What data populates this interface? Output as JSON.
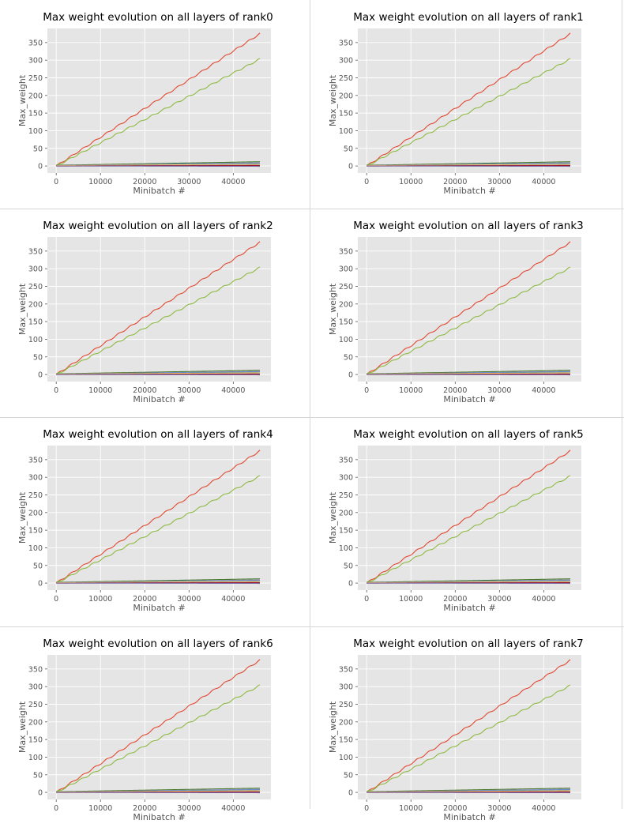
{
  "chart_data": [
    {
      "type": "line",
      "title": "Max weight evolution on all layers of rank0",
      "xlabel": "Minibatch #",
      "ylabel": "Max_weight",
      "xlim": [
        -2000,
        48500
      ],
      "ylim": [
        -20,
        390
      ],
      "xticks": [
        0,
        10000,
        20000,
        30000,
        40000
      ],
      "yticks": [
        0,
        50,
        100,
        150,
        200,
        250,
        300,
        350
      ],
      "grid": true,
      "background": "#e5e5e5",
      "gridcolor": "#ffffff",
      "series": [
        {
          "color": "#e24a33",
          "x": [
            0,
            46000
          ],
          "y": [
            0,
            375
          ]
        },
        {
          "color": "#8eba42",
          "x": [
            0,
            46000
          ],
          "y": [
            0,
            303
          ]
        },
        {
          "color": "#467821",
          "x": [
            0,
            46000
          ],
          "y": [
            2,
            12
          ]
        },
        {
          "color": "#988ed5",
          "x": [
            0,
            46000
          ],
          "y": [
            1,
            9
          ]
        },
        {
          "color": "#348abd",
          "x": [
            0,
            46000
          ],
          "y": [
            1,
            7
          ]
        },
        {
          "color": "#fbc15e",
          "x": [
            0,
            46000
          ],
          "y": [
            1,
            5
          ]
        },
        {
          "color": "#777777",
          "x": [
            0,
            46000
          ],
          "y": [
            0,
            2
          ]
        },
        {
          "color": "#a60628",
          "x": [
            0,
            46000
          ],
          "y": [
            0,
            1
          ]
        },
        {
          "color": "#7a68a6",
          "x": [
            0,
            46000
          ],
          "y": [
            0,
            -1
          ]
        }
      ]
    },
    {
      "type": "line",
      "title": "Max weight evolution on all layers of rank1",
      "xlabel": "Minibatch #",
      "ylabel": "Max_weight",
      "xlim": [
        -2000,
        48500
      ],
      "ylim": [
        -20,
        390
      ],
      "xticks": [
        0,
        10000,
        20000,
        30000,
        40000
      ],
      "yticks": [
        0,
        50,
        100,
        150,
        200,
        250,
        300,
        350
      ],
      "grid": true,
      "background": "#e5e5e5",
      "gridcolor": "#ffffff",
      "series": [
        {
          "color": "#e24a33",
          "x": [
            0,
            46000
          ],
          "y": [
            0,
            375
          ]
        },
        {
          "color": "#8eba42",
          "x": [
            0,
            46000
          ],
          "y": [
            0,
            303
          ]
        },
        {
          "color": "#467821",
          "x": [
            0,
            46000
          ],
          "y": [
            2,
            12
          ]
        },
        {
          "color": "#988ed5",
          "x": [
            0,
            46000
          ],
          "y": [
            1,
            9
          ]
        },
        {
          "color": "#348abd",
          "x": [
            0,
            46000
          ],
          "y": [
            1,
            7
          ]
        },
        {
          "color": "#fbc15e",
          "x": [
            0,
            46000
          ],
          "y": [
            1,
            5
          ]
        },
        {
          "color": "#777777",
          "x": [
            0,
            46000
          ],
          "y": [
            0,
            2
          ]
        },
        {
          "color": "#a60628",
          "x": [
            0,
            46000
          ],
          "y": [
            0,
            1
          ]
        },
        {
          "color": "#7a68a6",
          "x": [
            0,
            46000
          ],
          "y": [
            0,
            -1
          ]
        }
      ]
    },
    {
      "type": "line",
      "title": "Max weight evolution on all layers of rank2",
      "xlabel": "Minibatch #",
      "ylabel": "Max_weight",
      "xlim": [
        -2000,
        48500
      ],
      "ylim": [
        -20,
        390
      ],
      "xticks": [
        0,
        10000,
        20000,
        30000,
        40000
      ],
      "yticks": [
        0,
        50,
        100,
        150,
        200,
        250,
        300,
        350
      ],
      "grid": true,
      "background": "#e5e5e5",
      "gridcolor": "#ffffff",
      "series": [
        {
          "color": "#e24a33",
          "x": [
            0,
            46000
          ],
          "y": [
            0,
            375
          ]
        },
        {
          "color": "#8eba42",
          "x": [
            0,
            46000
          ],
          "y": [
            0,
            303
          ]
        },
        {
          "color": "#467821",
          "x": [
            0,
            46000
          ],
          "y": [
            2,
            12
          ]
        },
        {
          "color": "#988ed5",
          "x": [
            0,
            46000
          ],
          "y": [
            1,
            9
          ]
        },
        {
          "color": "#348abd",
          "x": [
            0,
            46000
          ],
          "y": [
            1,
            7
          ]
        },
        {
          "color": "#fbc15e",
          "x": [
            0,
            46000
          ],
          "y": [
            1,
            5
          ]
        },
        {
          "color": "#777777",
          "x": [
            0,
            46000
          ],
          "y": [
            0,
            2
          ]
        },
        {
          "color": "#a60628",
          "x": [
            0,
            46000
          ],
          "y": [
            0,
            1
          ]
        },
        {
          "color": "#7a68a6",
          "x": [
            0,
            46000
          ],
          "y": [
            0,
            -1
          ]
        }
      ]
    },
    {
      "type": "line",
      "title": "Max weight evolution on all layers of rank3",
      "xlabel": "Minibatch #",
      "ylabel": "Max_weight",
      "xlim": [
        -2000,
        48500
      ],
      "ylim": [
        -20,
        390
      ],
      "xticks": [
        0,
        10000,
        20000,
        30000,
        40000
      ],
      "yticks": [
        0,
        50,
        100,
        150,
        200,
        250,
        300,
        350
      ],
      "grid": true,
      "background": "#e5e5e5",
      "gridcolor": "#ffffff",
      "series": [
        {
          "color": "#e24a33",
          "x": [
            0,
            46000
          ],
          "y": [
            0,
            375
          ]
        },
        {
          "color": "#8eba42",
          "x": [
            0,
            46000
          ],
          "y": [
            0,
            303
          ]
        },
        {
          "color": "#467821",
          "x": [
            0,
            46000
          ],
          "y": [
            2,
            12
          ]
        },
        {
          "color": "#988ed5",
          "x": [
            0,
            46000
          ],
          "y": [
            1,
            9
          ]
        },
        {
          "color": "#348abd",
          "x": [
            0,
            46000
          ],
          "y": [
            1,
            7
          ]
        },
        {
          "color": "#fbc15e",
          "x": [
            0,
            46000
          ],
          "y": [
            1,
            5
          ]
        },
        {
          "color": "#777777",
          "x": [
            0,
            46000
          ],
          "y": [
            0,
            2
          ]
        },
        {
          "color": "#a60628",
          "x": [
            0,
            46000
          ],
          "y": [
            0,
            1
          ]
        },
        {
          "color": "#7a68a6",
          "x": [
            0,
            46000
          ],
          "y": [
            0,
            -1
          ]
        }
      ]
    },
    {
      "type": "line",
      "title": "Max weight evolution on all layers of rank4",
      "xlabel": "Minibatch #",
      "ylabel": "Max_weight",
      "xlim": [
        -2000,
        48500
      ],
      "ylim": [
        -20,
        390
      ],
      "xticks": [
        0,
        10000,
        20000,
        30000,
        40000
      ],
      "yticks": [
        0,
        50,
        100,
        150,
        200,
        250,
        300,
        350
      ],
      "grid": true,
      "background": "#e5e5e5",
      "gridcolor": "#ffffff",
      "series": [
        {
          "color": "#e24a33",
          "x": [
            0,
            46000
          ],
          "y": [
            0,
            375
          ]
        },
        {
          "color": "#8eba42",
          "x": [
            0,
            46000
          ],
          "y": [
            0,
            303
          ]
        },
        {
          "color": "#467821",
          "x": [
            0,
            46000
          ],
          "y": [
            2,
            12
          ]
        },
        {
          "color": "#988ed5",
          "x": [
            0,
            46000
          ],
          "y": [
            1,
            9
          ]
        },
        {
          "color": "#348abd",
          "x": [
            0,
            46000
          ],
          "y": [
            1,
            7
          ]
        },
        {
          "color": "#fbc15e",
          "x": [
            0,
            46000
          ],
          "y": [
            1,
            5
          ]
        },
        {
          "color": "#777777",
          "x": [
            0,
            46000
          ],
          "y": [
            0,
            2
          ]
        },
        {
          "color": "#a60628",
          "x": [
            0,
            46000
          ],
          "y": [
            0,
            1
          ]
        },
        {
          "color": "#7a68a6",
          "x": [
            0,
            46000
          ],
          "y": [
            0,
            -1
          ]
        }
      ]
    },
    {
      "type": "line",
      "title": "Max weight evolution on all layers of rank5",
      "xlabel": "Minibatch #",
      "ylabel": "Max_weight",
      "xlim": [
        -2000,
        48500
      ],
      "ylim": [
        -20,
        390
      ],
      "xticks": [
        0,
        10000,
        20000,
        30000,
        40000
      ],
      "yticks": [
        0,
        50,
        100,
        150,
        200,
        250,
        300,
        350
      ],
      "grid": true,
      "background": "#e5e5e5",
      "gridcolor": "#ffffff",
      "series": [
        {
          "color": "#e24a33",
          "x": [
            0,
            46000
          ],
          "y": [
            0,
            375
          ]
        },
        {
          "color": "#8eba42",
          "x": [
            0,
            46000
          ],
          "y": [
            0,
            303
          ]
        },
        {
          "color": "#467821",
          "x": [
            0,
            46000
          ],
          "y": [
            2,
            12
          ]
        },
        {
          "color": "#988ed5",
          "x": [
            0,
            46000
          ],
          "y": [
            1,
            9
          ]
        },
        {
          "color": "#348abd",
          "x": [
            0,
            46000
          ],
          "y": [
            1,
            7
          ]
        },
        {
          "color": "#fbc15e",
          "x": [
            0,
            46000
          ],
          "y": [
            1,
            5
          ]
        },
        {
          "color": "#777777",
          "x": [
            0,
            46000
          ],
          "y": [
            0,
            2
          ]
        },
        {
          "color": "#a60628",
          "x": [
            0,
            46000
          ],
          "y": [
            0,
            1
          ]
        },
        {
          "color": "#7a68a6",
          "x": [
            0,
            46000
          ],
          "y": [
            0,
            -1
          ]
        }
      ]
    },
    {
      "type": "line",
      "title": "Max weight evolution on all layers of rank6",
      "xlabel": "Minibatch #",
      "ylabel": "Max_weight",
      "xlim": [
        -2000,
        48500
      ],
      "ylim": [
        -20,
        390
      ],
      "xticks": [
        0,
        10000,
        20000,
        30000,
        40000
      ],
      "yticks": [
        0,
        50,
        100,
        150,
        200,
        250,
        300,
        350
      ],
      "grid": true,
      "background": "#e5e5e5",
      "gridcolor": "#ffffff",
      "series": [
        {
          "color": "#e24a33",
          "x": [
            0,
            46000
          ],
          "y": [
            0,
            375
          ]
        },
        {
          "color": "#8eba42",
          "x": [
            0,
            46000
          ],
          "y": [
            0,
            303
          ]
        },
        {
          "color": "#467821",
          "x": [
            0,
            46000
          ],
          "y": [
            2,
            12
          ]
        },
        {
          "color": "#988ed5",
          "x": [
            0,
            46000
          ],
          "y": [
            1,
            9
          ]
        },
        {
          "color": "#348abd",
          "x": [
            0,
            46000
          ],
          "y": [
            1,
            7
          ]
        },
        {
          "color": "#fbc15e",
          "x": [
            0,
            46000
          ],
          "y": [
            1,
            5
          ]
        },
        {
          "color": "#777777",
          "x": [
            0,
            46000
          ],
          "y": [
            0,
            2
          ]
        },
        {
          "color": "#a60628",
          "x": [
            0,
            46000
          ],
          "y": [
            0,
            1
          ]
        },
        {
          "color": "#7a68a6",
          "x": [
            0,
            46000
          ],
          "y": [
            0,
            -1
          ]
        }
      ]
    },
    {
      "type": "line",
      "title": "Max weight evolution on all layers of rank7",
      "xlabel": "Minibatch #",
      "ylabel": "Max_weight",
      "xlim": [
        -2000,
        48500
      ],
      "ylim": [
        -20,
        390
      ],
      "xticks": [
        0,
        10000,
        20000,
        30000,
        40000
      ],
      "yticks": [
        0,
        50,
        100,
        150,
        200,
        250,
        300,
        350
      ],
      "grid": true,
      "background": "#e5e5e5",
      "gridcolor": "#ffffff",
      "series": [
        {
          "color": "#e24a33",
          "x": [
            0,
            46000
          ],
          "y": [
            0,
            375
          ]
        },
        {
          "color": "#8eba42",
          "x": [
            0,
            46000
          ],
          "y": [
            0,
            303
          ]
        },
        {
          "color": "#467821",
          "x": [
            0,
            46000
          ],
          "y": [
            2,
            12
          ]
        },
        {
          "color": "#988ed5",
          "x": [
            0,
            46000
          ],
          "y": [
            1,
            9
          ]
        },
        {
          "color": "#348abd",
          "x": [
            0,
            46000
          ],
          "y": [
            1,
            7
          ]
        },
        {
          "color": "#fbc15e",
          "x": [
            0,
            46000
          ],
          "y": [
            1,
            5
          ]
        },
        {
          "color": "#777777",
          "x": [
            0,
            46000
          ],
          "y": [
            0,
            2
          ]
        },
        {
          "color": "#a60628",
          "x": [
            0,
            46000
          ],
          "y": [
            0,
            1
          ]
        },
        {
          "color": "#7a68a6",
          "x": [
            0,
            46000
          ],
          "y": [
            0,
            -1
          ]
        }
      ]
    }
  ]
}
